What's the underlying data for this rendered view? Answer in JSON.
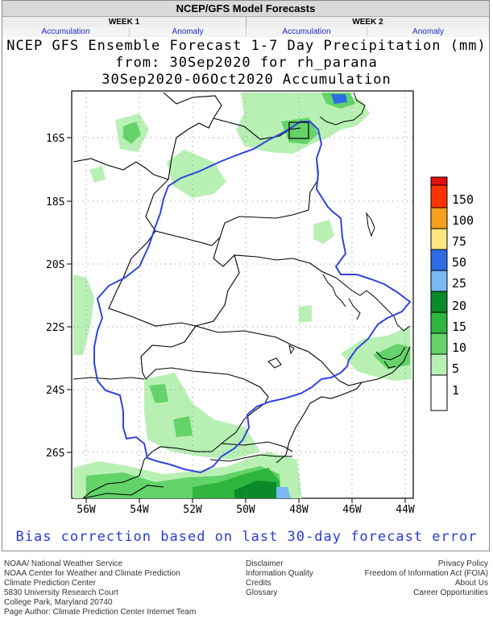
{
  "header": {
    "title": "NCEP/GFS Model Forecasts",
    "week1": "WEEK 1",
    "week2": "WEEK 2",
    "links": [
      "Accumulation",
      "Anomaly",
      "Accumulation",
      "Anomaly"
    ]
  },
  "map": {
    "title_line1": "NCEP GFS Ensemble Forecast 1-7 Day Precipitation (mm)",
    "title_line2": "from: 30Sep2020  for rh_parana",
    "title_line3": "30Sep2020-06Oct2020 Accumulation",
    "lat_labels": [
      "16S",
      "18S",
      "20S",
      "22S",
      "24S",
      "26S"
    ],
    "lon_labels": [
      "56W",
      "54W",
      "52W",
      "50W",
      "48W",
      "46W",
      "44W"
    ],
    "bias_note": "Bias correction based on last 30-day forecast error"
  },
  "legend": {
    "labels": [
      "150",
      "100",
      "75",
      "50",
      "25",
      "20",
      "15",
      "10",
      "5",
      "1"
    ],
    "colors": [
      "#ff3300",
      "#f7a01e",
      "#ffe680",
      "#2d6ce6",
      "#7ab8f2",
      "#0a8a2a",
      "#2eb53e",
      "#63d36a",
      "#b8f0b4",
      "#ffffff",
      "#e01010"
    ]
  },
  "footer": {
    "left": [
      "NOAA/ National Weather Service",
      "NOAA Center for Weather and Climate Prediction",
      "Climate Prediction Center",
      "5830 University Research Court",
      "College Park, Maryland 20740",
      "Page Author: Climate Prediction Center Internet Team"
    ],
    "middle": [
      "Disclaimer",
      "Information Quality",
      "Credits",
      "Glossary"
    ],
    "right": [
      "Privacy Policy",
      "Freedom of Information Act (FOIA)",
      "About Us",
      "Career Opportunities"
    ]
  }
}
